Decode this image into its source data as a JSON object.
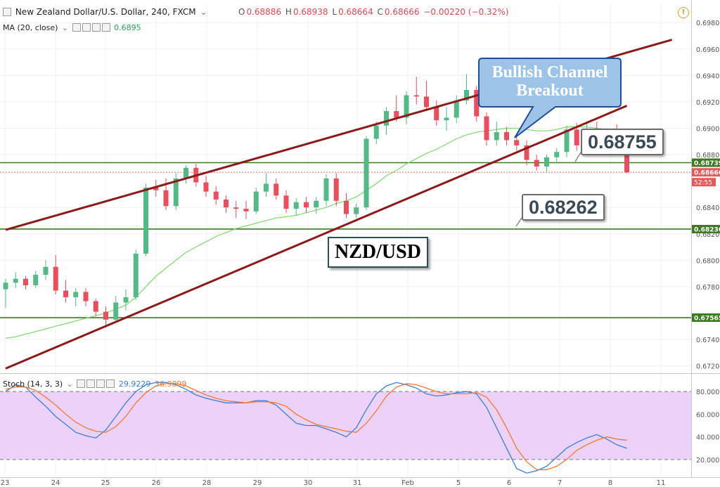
{
  "header": {
    "symbol_title": "New Zealand Dollar/U.S. Dollar, 240, FXCM",
    "ohlc": [
      {
        "label": "O",
        "value": "0.68886"
      },
      {
        "label": "H",
        "value": "0.68938"
      },
      {
        "label": "L",
        "value": "0.68664"
      },
      {
        "label": "C",
        "value": "0.68666"
      }
    ],
    "change": "−0.00220 (−0.32%)",
    "ma_label": "MA (20, close)",
    "ma_value": "0.6895",
    "stoch_label": "Stoch (14, 3, 3)",
    "stoch_k": "29.9229",
    "stoch_d": "36.9899",
    "warning_icon": "!"
  },
  "annotations": {
    "bubble": "Bullish Channel Breakout",
    "price_high": "0.68755",
    "price_low": "0.68262",
    "pair": "NZD/USD"
  },
  "colors": {
    "up": "#53b987",
    "down": "#eb4d5c",
    "channel": "#8b1a1a",
    "support": "#3d7a22",
    "ma": "#7ed86d",
    "stoch_k": "#3a7fd5",
    "stoch_d": "#f07a3a",
    "stoch_fill": "#e9c9f7"
  },
  "chart_data": [
    {
      "type": "candlestick",
      "title": "New Zealand Dollar/U.S. Dollar, 240, FXCM",
      "ylim": [
        0.6715,
        0.6995
      ],
      "y_ticks": [
        "0.69800",
        "0.69600",
        "0.69400",
        "0.69200",
        "0.69000",
        "0.68800",
        "0.68400",
        "0.68200",
        "0.68000",
        "0.67800",
        "0.67400",
        "0.67200"
      ],
      "x_ticks": [
        "23",
        "24",
        "25",
        "26",
        "28",
        "29",
        "30",
        "31",
        "Feb",
        "5",
        "6",
        "7",
        "8",
        "11"
      ],
      "x_tick_positions": [
        0,
        5,
        10,
        15,
        20,
        25,
        30,
        35,
        40,
        45,
        50,
        55,
        60,
        65
      ],
      "candles": [
        {
          "o": 0.6778,
          "h": 0.6786,
          "l": 0.6764,
          "c": 0.6783
        },
        {
          "o": 0.6783,
          "h": 0.6791,
          "l": 0.6779,
          "c": 0.6786
        },
        {
          "o": 0.6786,
          "h": 0.6788,
          "l": 0.6778,
          "c": 0.6781
        },
        {
          "o": 0.6781,
          "h": 0.6792,
          "l": 0.6779,
          "c": 0.6789
        },
        {
          "o": 0.6789,
          "h": 0.68,
          "l": 0.6785,
          "c": 0.6795
        },
        {
          "o": 0.6795,
          "h": 0.6804,
          "l": 0.6774,
          "c": 0.6777
        },
        {
          "o": 0.6777,
          "h": 0.6785,
          "l": 0.6768,
          "c": 0.6772
        },
        {
          "o": 0.6772,
          "h": 0.6779,
          "l": 0.6765,
          "c": 0.6776
        },
        {
          "o": 0.6776,
          "h": 0.6779,
          "l": 0.6765,
          "c": 0.6769
        },
        {
          "o": 0.6769,
          "h": 0.6771,
          "l": 0.6758,
          "c": 0.6761
        },
        {
          "o": 0.6761,
          "h": 0.6765,
          "l": 0.6749,
          "c": 0.6755
        },
        {
          "o": 0.6755,
          "h": 0.6773,
          "l": 0.6753,
          "c": 0.6768
        },
        {
          "o": 0.6768,
          "h": 0.6778,
          "l": 0.6762,
          "c": 0.6772
        },
        {
          "o": 0.6772,
          "h": 0.6808,
          "l": 0.677,
          "c": 0.6805
        },
        {
          "o": 0.6805,
          "h": 0.6858,
          "l": 0.6803,
          "c": 0.6855
        },
        {
          "o": 0.6855,
          "h": 0.6861,
          "l": 0.6848,
          "c": 0.6853
        },
        {
          "o": 0.6853,
          "h": 0.6862,
          "l": 0.6838,
          "c": 0.6841
        },
        {
          "o": 0.6841,
          "h": 0.6866,
          "l": 0.6838,
          "c": 0.6862
        },
        {
          "o": 0.6862,
          "h": 0.6872,
          "l": 0.6858,
          "c": 0.687
        },
        {
          "o": 0.687,
          "h": 0.6873,
          "l": 0.6856,
          "c": 0.6859
        },
        {
          "o": 0.6859,
          "h": 0.6864,
          "l": 0.6848,
          "c": 0.6852
        },
        {
          "o": 0.6852,
          "h": 0.6856,
          "l": 0.6842,
          "c": 0.6846
        },
        {
          "o": 0.6846,
          "h": 0.6849,
          "l": 0.6836,
          "c": 0.684
        },
        {
          "o": 0.684,
          "h": 0.6845,
          "l": 0.6832,
          "c": 0.6839
        },
        {
          "o": 0.6839,
          "h": 0.6845,
          "l": 0.6831,
          "c": 0.6837
        },
        {
          "o": 0.6837,
          "h": 0.6855,
          "l": 0.6835,
          "c": 0.6852
        },
        {
          "o": 0.6852,
          "h": 0.6866,
          "l": 0.6848,
          "c": 0.6858
        },
        {
          "o": 0.6858,
          "h": 0.6862,
          "l": 0.6846,
          "c": 0.6849
        },
        {
          "o": 0.6849,
          "h": 0.6853,
          "l": 0.6836,
          "c": 0.6839
        },
        {
          "o": 0.6839,
          "h": 0.6847,
          "l": 0.6834,
          "c": 0.6844
        },
        {
          "o": 0.6844,
          "h": 0.6848,
          "l": 0.6836,
          "c": 0.684
        },
        {
          "o": 0.684,
          "h": 0.6848,
          "l": 0.6835,
          "c": 0.6845
        },
        {
          "o": 0.6845,
          "h": 0.6865,
          "l": 0.6841,
          "c": 0.6862
        },
        {
          "o": 0.6862,
          "h": 0.6866,
          "l": 0.6841,
          "c": 0.6845
        },
        {
          "o": 0.6845,
          "h": 0.6851,
          "l": 0.6832,
          "c": 0.6835
        },
        {
          "o": 0.6835,
          "h": 0.6843,
          "l": 0.6832,
          "c": 0.684
        },
        {
          "o": 0.684,
          "h": 0.6894,
          "l": 0.6838,
          "c": 0.6892
        },
        {
          "o": 0.6892,
          "h": 0.6905,
          "l": 0.6888,
          "c": 0.6902
        },
        {
          "o": 0.6902,
          "h": 0.6916,
          "l": 0.6895,
          "c": 0.6913
        },
        {
          "o": 0.6913,
          "h": 0.6925,
          "l": 0.6905,
          "c": 0.6908
        },
        {
          "o": 0.6908,
          "h": 0.6928,
          "l": 0.6903,
          "c": 0.6925
        },
        {
          "o": 0.6925,
          "h": 0.6939,
          "l": 0.6918,
          "c": 0.6924
        },
        {
          "o": 0.6924,
          "h": 0.6936,
          "l": 0.6914,
          "c": 0.6916
        },
        {
          "o": 0.6916,
          "h": 0.6921,
          "l": 0.6902,
          "c": 0.6906
        },
        {
          "o": 0.6906,
          "h": 0.6916,
          "l": 0.6898,
          "c": 0.6908
        },
        {
          "o": 0.6908,
          "h": 0.6925,
          "l": 0.6904,
          "c": 0.6921
        },
        {
          "o": 0.6921,
          "h": 0.6941,
          "l": 0.6918,
          "c": 0.6929
        },
        {
          "o": 0.6929,
          "h": 0.6932,
          "l": 0.6905,
          "c": 0.6909
        },
        {
          "o": 0.6909,
          "h": 0.6912,
          "l": 0.6887,
          "c": 0.6891
        },
        {
          "o": 0.6891,
          "h": 0.6905,
          "l": 0.6887,
          "c": 0.6897
        },
        {
          "o": 0.6897,
          "h": 0.6901,
          "l": 0.6887,
          "c": 0.6891
        },
        {
          "o": 0.6891,
          "h": 0.6896,
          "l": 0.6883,
          "c": 0.6887
        },
        {
          "o": 0.6887,
          "h": 0.6891,
          "l": 0.6872,
          "c": 0.6876
        },
        {
          "o": 0.6876,
          "h": 0.688,
          "l": 0.6868,
          "c": 0.6871
        },
        {
          "o": 0.6871,
          "h": 0.688,
          "l": 0.6867,
          "c": 0.6878
        },
        {
          "o": 0.6878,
          "h": 0.6885,
          "l": 0.6874,
          "c": 0.6882
        },
        {
          "o": 0.6882,
          "h": 0.6902,
          "l": 0.6878,
          "c": 0.6899
        },
        {
          "o": 0.6899,
          "h": 0.6904,
          "l": 0.6883,
          "c": 0.6887
        },
        {
          "o": 0.6887,
          "h": 0.6904,
          "l": 0.6884,
          "c": 0.6899
        },
        {
          "o": 0.6899,
          "h": 0.6905,
          "l": 0.6888,
          "c": 0.6893
        },
        {
          "o": 0.6893,
          "h": 0.69,
          "l": 0.6885,
          "c": 0.6895
        },
        {
          "o": 0.6895,
          "h": 0.6903,
          "l": 0.6884,
          "c": 0.6888
        },
        {
          "o": 0.6888,
          "h": 0.6894,
          "l": 0.6866,
          "c": 0.68666
        }
      ],
      "ma20": [
        0.6741,
        0.6742,
        0.6744,
        0.6746,
        0.6748,
        0.675,
        0.6752,
        0.6754,
        0.6756,
        0.6758,
        0.676,
        0.6763,
        0.6766,
        0.6772,
        0.678,
        0.6788,
        0.6794,
        0.68,
        0.6806,
        0.681,
        0.6814,
        0.6818,
        0.6821,
        0.6824,
        0.6826,
        0.6828,
        0.683,
        0.6832,
        0.6833,
        0.6834,
        0.6836,
        0.6838,
        0.684,
        0.6843,
        0.6845,
        0.6848,
        0.6853,
        0.6858,
        0.6864,
        0.6868,
        0.6873,
        0.6877,
        0.6881,
        0.6884,
        0.6888,
        0.6892,
        0.6895,
        0.6897,
        0.6898,
        0.6899,
        0.69,
        0.69,
        0.6899,
        0.6898,
        0.6898,
        0.6899,
        0.6901,
        0.6901,
        0.6901,
        0.69,
        0.6899,
        0.6897,
        0.6895
      ],
      "horizontal_levels": [
        {
          "price": 0.68739,
          "label": "0.68739"
        },
        {
          "price": 0.68236,
          "label": "0.68236"
        },
        {
          "price": 0.67565,
          "label": "0.67565"
        }
      ],
      "last_price": {
        "price": 0.68666,
        "label": "0.68666",
        "countdown": "52:55"
      },
      "channel_lines": [
        {
          "from": [
            0,
            0.6823
          ],
          "to": [
            66.5,
            0.6967
          ]
        },
        {
          "from": [
            0,
            0.6718
          ],
          "to": [
            62,
            0.6917
          ]
        }
      ]
    },
    {
      "type": "line",
      "title": "Stoch (14, 3, 3)",
      "ylim": [
        5,
        95
      ],
      "y_ticks": [
        "80.0000",
        "60.0000",
        "40.0000",
        "20.0000"
      ],
      "band": [
        20,
        80
      ],
      "series": [
        {
          "name": "%K",
          "values": [
            80,
            86,
            84,
            75,
            67,
            58,
            51,
            44,
            41,
            39,
            46,
            58,
            70,
            80,
            86,
            88,
            88,
            86,
            82,
            77,
            74,
            72,
            70,
            70,
            70,
            72,
            72,
            68,
            60,
            52,
            50,
            50,
            47,
            44,
            40,
            48,
            64,
            78,
            85,
            88,
            86,
            83,
            78,
            76,
            77,
            79,
            80,
            78,
            66,
            48,
            30,
            12,
            8,
            10,
            14,
            22,
            30,
            35,
            39,
            42,
            38,
            33,
            29.92
          ]
        },
        {
          "name": "%D",
          "values": [
            82,
            84,
            84,
            81,
            75,
            68,
            60,
            53,
            48,
            45,
            44,
            49,
            58,
            70,
            79,
            85,
            87,
            87,
            85,
            81,
            77,
            74,
            72,
            71,
            70,
            71,
            71,
            70,
            67,
            60,
            55,
            51,
            49,
            47,
            45,
            44,
            52,
            63,
            76,
            84,
            87,
            86,
            83,
            80,
            78,
            78,
            78,
            79,
            75,
            64,
            48,
            30,
            18,
            11,
            11,
            14,
            20,
            28,
            33,
            37,
            40,
            38,
            36.99
          ]
        }
      ]
    }
  ]
}
